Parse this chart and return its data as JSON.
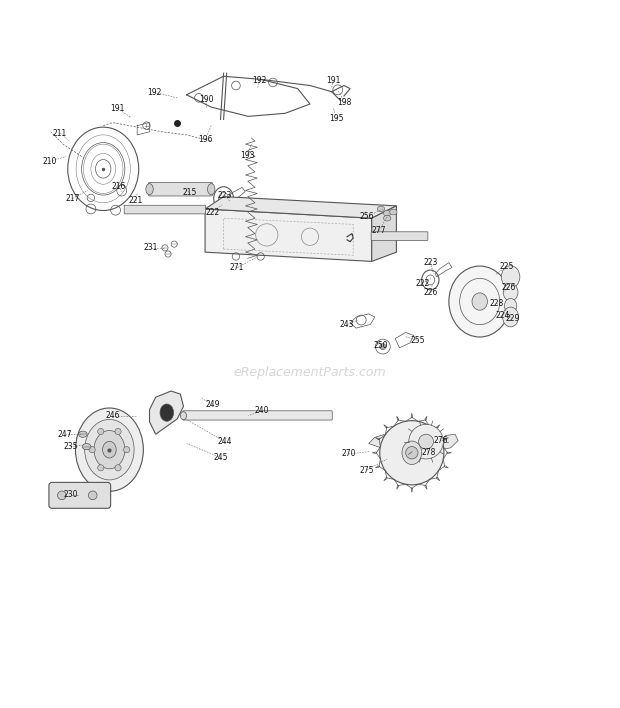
{
  "background_color": "#ffffff",
  "line_color": "#555555",
  "watermark": "eReplacementParts.com",
  "watermark_color": "#bbbbbb",
  "fig_width": 6.2,
  "fig_height": 7.08,
  "dpi": 100
}
